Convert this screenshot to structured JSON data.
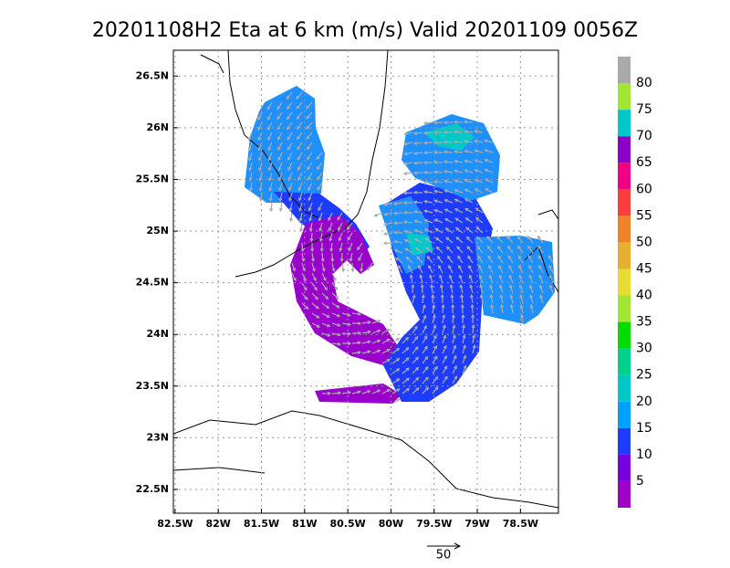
{
  "map": {
    "title": "20201108H2 Eta at 6 km (m/s) Valid 20201109 0056Z",
    "xlim": [
      -82.52,
      -78.06
    ],
    "ylim": [
      22.27,
      26.75
    ],
    "xticks": [
      {
        "value": -82.5,
        "label": "82.5W"
      },
      {
        "value": -82,
        "label": "82W"
      },
      {
        "value": -81.5,
        "label": "81.5W"
      },
      {
        "value": -81,
        "label": "81W"
      },
      {
        "value": -80.5,
        "label": "80.5W"
      },
      {
        "value": -80,
        "label": "80W"
      },
      {
        "value": -79.5,
        "label": "79.5W"
      },
      {
        "value": -79,
        "label": "79W"
      },
      {
        "value": -78.5,
        "label": "78.5W"
      }
    ],
    "yticks": [
      {
        "value": 26.5,
        "label": "26.5N"
      },
      {
        "value": 26,
        "label": "26N"
      },
      {
        "value": 25.5,
        "label": "25.5N"
      },
      {
        "value": 25,
        "label": "25N"
      },
      {
        "value": 24.5,
        "label": "24.5N"
      },
      {
        "value": 24,
        "label": "24N"
      },
      {
        "value": 23.5,
        "label": "23.5N"
      },
      {
        "value": 23,
        "label": "23N"
      },
      {
        "value": 22.5,
        "label": "22.5N"
      }
    ],
    "grid": true,
    "colorbar": {
      "levels": [
        5,
        10,
        15,
        20,
        25,
        30,
        35,
        40,
        45,
        50,
        55,
        60,
        65,
        70,
        75,
        80
      ],
      "colors": [
        "#a000c8",
        "#7800dc",
        "#1e3cff",
        "#00a0ff",
        "#00c8c8",
        "#00d28c",
        "#00dc00",
        "#a0e632",
        "#e6dc32",
        "#e6af2d",
        "#f08228",
        "#fa3c3c",
        "#f00082",
        "#8c00c8",
        "#00c8c8",
        "#a0e632",
        "#aaaaaa"
      ]
    },
    "reference_vector": "50"
  }
}
